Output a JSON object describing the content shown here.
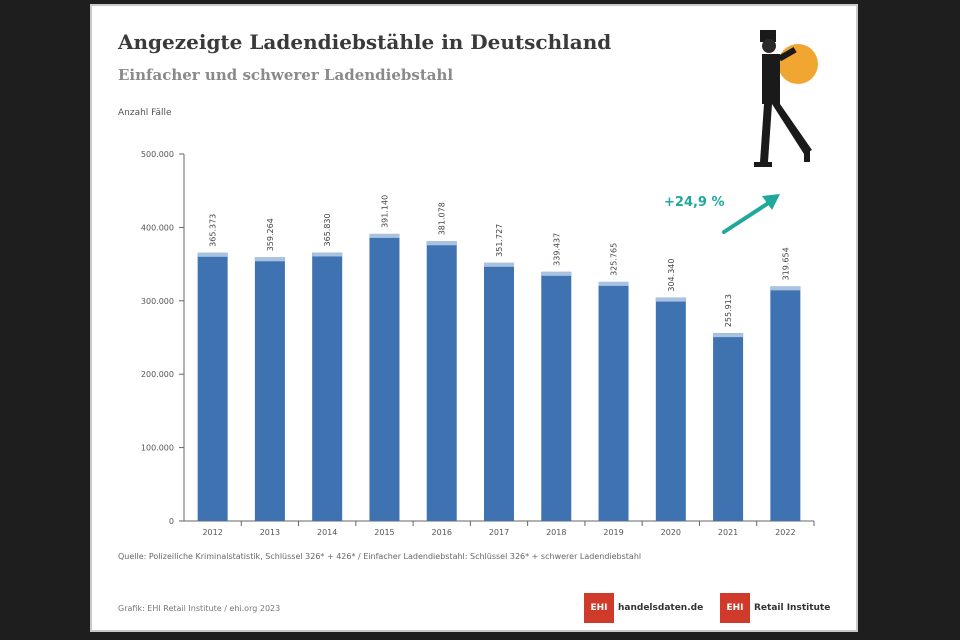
{
  "header": {
    "title": "Angezeigte Ladendiebstähle in Deutschland",
    "subtitle": "Einfacher und schwerer Ladendiebstahl",
    "unit": "Anzahl Fälle"
  },
  "annotation": {
    "change": "+24,9 %",
    "color": "#1fa99a"
  },
  "footer": {
    "source": "Quelle: Polizeiliche Kriminalstatistik, Schlüssel 326* + 426* / Einfacher Ladendiebstahl: Schlüssel 326* + schwerer Ladendiebstahl",
    "credit": "Grafik: EHI Retail Institute / ehi.org 2023",
    "logo1_mark": "EHI",
    "logo1_text": "handelsdaten.de",
    "logo2_mark": "EHI",
    "logo2_text": "Retail Institute"
  },
  "colors": {
    "bar": "#3f72b0",
    "bar_top": "#a9c2e0",
    "axis": "#666666",
    "logo": "#d03a2a"
  },
  "chart_data": {
    "type": "bar",
    "categories": [
      "2012",
      "2013",
      "2014",
      "2015",
      "2016",
      "2017",
      "2018",
      "2019",
      "2020",
      "2021",
      "2022"
    ],
    "values": [
      365373,
      359264,
      365830,
      391140,
      381078,
      351727,
      339437,
      325765,
      304340,
      255913,
      319654
    ],
    "value_labels": [
      "365.373",
      "359.264",
      "365.830",
      "391.140",
      "381.078",
      "351.727",
      "339.437",
      "325.765",
      "304.340",
      "255.913",
      "319.654"
    ],
    "ylim": [
      0,
      500000
    ],
    "yticks": [
      0,
      100000,
      200000,
      300000,
      400000,
      500000
    ],
    "ytick_labels": [
      "0",
      "100.000",
      "200.000",
      "300.000",
      "400.000",
      "500.000"
    ],
    "grid": false,
    "legend": "none"
  }
}
